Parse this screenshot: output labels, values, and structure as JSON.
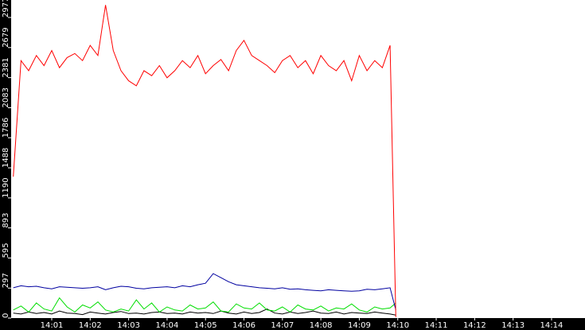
{
  "chart_data": {
    "type": "line",
    "x": [
      0,
      0.2,
      0.4,
      0.6,
      0.8,
      1,
      1.2,
      1.4,
      1.6,
      1.8,
      2,
      2.2,
      2.4,
      2.6,
      2.8,
      3,
      3.2,
      3.4,
      3.6,
      3.8,
      4,
      4.2,
      4.4,
      4.6,
      4.8,
      5,
      5.2,
      5.4,
      5.6,
      5.8,
      6,
      6.2,
      6.4,
      6.6,
      6.8,
      7,
      7.2,
      7.4,
      7.6,
      7.8,
      8,
      8.2,
      8.4,
      8.6,
      8.8,
      9,
      9.2,
      9.4,
      9.6,
      9.8,
      9.95
    ],
    "series": [
      {
        "color": "#ff0000",
        "values": [
          1400,
          2550,
          2450,
          2600,
          2500,
          2650,
          2480,
          2580,
          2620,
          2550,
          2700,
          2600,
          3100,
          2650,
          2450,
          2350,
          2300,
          2450,
          2400,
          2500,
          2380,
          2450,
          2550,
          2480,
          2600,
          2420,
          2500,
          2560,
          2450,
          2650,
          2750,
          2600,
          2550,
          2500,
          2430,
          2550,
          2600,
          2480,
          2550,
          2420,
          2600,
          2500,
          2450,
          2550,
          2350,
          2600,
          2450,
          2550,
          2480,
          2700,
          10
        ]
      },
      {
        "color": "#0000a0",
        "values": [
          300,
          320,
          310,
          315,
          300,
          290,
          310,
          305,
          300,
          295,
          300,
          310,
          280,
          300,
          315,
          310,
          295,
          290,
          300,
          305,
          310,
          300,
          320,
          310,
          330,
          345,
          440,
          400,
          360,
          330,
          320,
          310,
          300,
          295,
          290,
          300,
          285,
          290,
          280,
          275,
          270,
          280,
          275,
          270,
          265,
          270,
          285,
          280,
          290,
          300,
          80
        ]
      },
      {
        "color": "#00dd00",
        "values": [
          80,
          120,
          60,
          150,
          90,
          70,
          200,
          110,
          60,
          130,
          100,
          160,
          80,
          60,
          90,
          70,
          180,
          90,
          150,
          60,
          110,
          80,
          70,
          130,
          90,
          100,
          160,
          70,
          60,
          140,
          100,
          90,
          150,
          80,
          70,
          110,
          60,
          130,
          90,
          80,
          120,
          70,
          100,
          90,
          140,
          80,
          60,
          110,
          90,
          100,
          150
        ]
      },
      {
        "color": "#000000",
        "values": [
          50,
          40,
          60,
          45,
          55,
          40,
          70,
          50,
          45,
          35,
          60,
          50,
          40,
          55,
          65,
          45,
          50,
          40,
          55,
          60,
          45,
          50,
          40,
          60,
          50,
          55,
          45,
          70,
          50,
          40,
          60,
          45,
          55,
          90,
          50,
          40,
          60,
          45,
          55,
          70,
          50,
          45,
          60,
          40,
          55,
          50,
          45,
          60,
          50,
          40,
          30
        ]
      }
    ],
    "xlim": [
      -0.056,
      14.87
    ],
    "xticks": [
      {
        "value": 1,
        "label": "14:01"
      },
      {
        "value": 2,
        "label": "14:02"
      },
      {
        "value": 3,
        "label": "14:03"
      },
      {
        "value": 4,
        "label": "14:04"
      },
      {
        "value": 5,
        "label": "14:05"
      },
      {
        "value": 6,
        "label": "14:06"
      },
      {
        "value": 7,
        "label": "14:07"
      },
      {
        "value": 8,
        "label": "14:08"
      },
      {
        "value": 9,
        "label": "14:09"
      },
      {
        "value": 10,
        "label": "14:10"
      },
      {
        "value": 11,
        "label": "14:11"
      },
      {
        "value": 12,
        "label": "14:12"
      },
      {
        "value": 13,
        "label": "14:13"
      },
      {
        "value": 14,
        "label": "14:14"
      }
    ],
    "ylim": [
      0,
      3150
    ],
    "yticks": [
      0,
      297,
      595,
      893,
      1190,
      1488,
      1786,
      2083,
      2381,
      2679,
      2977
    ]
  }
}
